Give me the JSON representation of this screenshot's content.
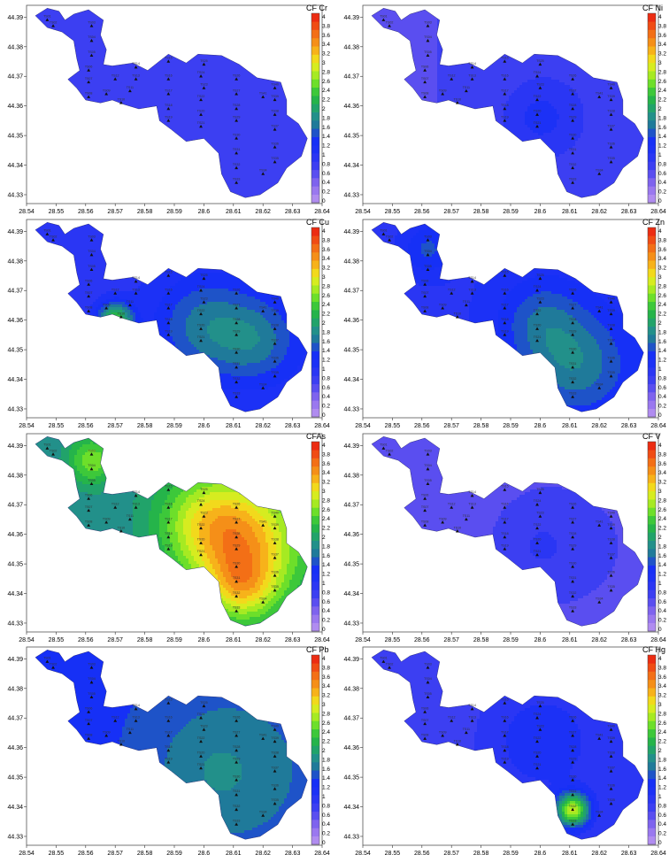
{
  "colors": {
    "bg": "#ffffff",
    "frame": "#555555",
    "colorbar": [
      "#b08cf0",
      "#9a78ef",
      "#7e63ee",
      "#5a4ef0",
      "#3c3ff2",
      "#2a36f4",
      "#1c31f6",
      "#1630f6",
      "#1e53c8",
      "#1f7a9a",
      "#22908a",
      "#21a36a",
      "#25b44a",
      "#3dc83a",
      "#6ddf2a",
      "#a6ea22",
      "#d6ec20",
      "#f2d91c",
      "#f7b21a",
      "#f58f18",
      "#f36f16",
      "#f04c14",
      "#ec2c12"
    ]
  },
  "map": {
    "x_ticks": [
      "28.54",
      "28.55",
      "28.56",
      "28.57",
      "28.58",
      "28.59",
      "28.6",
      "28.61",
      "28.62",
      "28.63",
      "28.64"
    ],
    "y_ticks": [
      "44.39",
      "44.38",
      "44.37",
      "44.36",
      "44.35",
      "44.34",
      "44.33"
    ],
    "colorbar_ticks": [
      "4",
      "3.8",
      "3.6",
      "3.4",
      "3.2",
      "3",
      "2.8",
      "2.6",
      "2.4",
      "2.2",
      "2",
      "1.8",
      "1.6",
      "1.4",
      "1.2",
      "1",
      "0.8",
      "0.6",
      "0.4",
      "0.2",
      "0"
    ],
    "stations": [
      {
        "id": "TS01",
        "x": 28.547,
        "y": 44.389
      },
      {
        "id": "TS02",
        "x": 28.549,
        "y": 44.387
      },
      {
        "id": "TS03",
        "x": 28.562,
        "y": 44.387
      },
      {
        "id": "TS04",
        "x": 28.562,
        "y": 44.382
      },
      {
        "id": "TS05",
        "x": 28.562,
        "y": 44.377
      },
      {
        "id": "TS06",
        "x": 28.561,
        "y": 44.372
      },
      {
        "id": "TS07",
        "x": 28.561,
        "y": 44.368
      },
      {
        "id": "TS08",
        "x": 28.561,
        "y": 44.363
      },
      {
        "id": "TS09",
        "x": 28.567,
        "y": 44.364
      },
      {
        "id": "TS10",
        "x": 28.572,
        "y": 44.361
      },
      {
        "id": "TS11",
        "x": 28.575,
        "y": 44.365
      },
      {
        "id": "TS12",
        "x": 28.57,
        "y": 44.369
      },
      {
        "id": "TS13",
        "x": 28.577,
        "y": 44.369
      },
      {
        "id": "TS14",
        "x": 28.577,
        "y": 44.373
      },
      {
        "id": "TS15",
        "x": 28.588,
        "y": 44.375
      },
      {
        "id": "TS16",
        "x": 28.588,
        "y": 44.369
      },
      {
        "id": "TS17",
        "x": 28.588,
        "y": 44.364
      },
      {
        "id": "TS18",
        "x": 28.588,
        "y": 44.359
      },
      {
        "id": "TS19",
        "x": 28.588,
        "y": 44.355
      },
      {
        "id": "TS20",
        "x": 28.599,
        "y": 44.357
      },
      {
        "id": "TS21",
        "x": 28.599,
        "y": 44.353
      },
      {
        "id": "TS22",
        "x": 28.599,
        "y": 44.362
      },
      {
        "id": "TS23",
        "x": 28.6,
        "y": 44.366
      },
      {
        "id": "TS24",
        "x": 28.599,
        "y": 44.37
      },
      {
        "id": "TS25",
        "x": 28.6,
        "y": 44.374
      },
      {
        "id": "TS26",
        "x": 28.611,
        "y": 44.369
      },
      {
        "id": "TS27",
        "x": 28.611,
        "y": 44.364
      },
      {
        "id": "TS28",
        "x": 28.611,
        "y": 44.359
      },
      {
        "id": "TS29",
        "x": 28.611,
        "y": 44.355
      },
      {
        "id": "TS30",
        "x": 28.611,
        "y": 44.349
      },
      {
        "id": "TS31",
        "x": 28.611,
        "y": 44.344
      },
      {
        "id": "TS32",
        "x": 28.611,
        "y": 44.339
      },
      {
        "id": "TS33",
        "x": 28.611,
        "y": 44.334
      },
      {
        "id": "TS34",
        "x": 28.62,
        "y": 44.337
      },
      {
        "id": "TS35",
        "x": 28.624,
        "y": 44.341
      },
      {
        "id": "TS36",
        "x": 28.624,
        "y": 44.346
      },
      {
        "id": "TS37",
        "x": 28.624,
        "y": 44.352
      },
      {
        "id": "TS38",
        "x": 28.624,
        "y": 44.357
      },
      {
        "id": "TS39",
        "x": 28.624,
        "y": 44.362
      },
      {
        "id": "TS40",
        "x": 28.624,
        "y": 44.366
      },
      {
        "id": "TS41",
        "x": 28.62,
        "y": 44.363
      }
    ]
  },
  "panels": [
    {
      "id": "cr",
      "title": "CF Cr",
      "base": 0.9,
      "hot": []
    },
    {
      "id": "ni",
      "title": "CF Ni",
      "base": 0.85,
      "hot": [
        {
          "x": 28.6,
          "y": 44.356,
          "v": 0.4,
          "s": 0.009
        }
      ]
    },
    {
      "id": "cu",
      "title": "CF Cu",
      "base": 1.15,
      "hot": [
        {
          "x": 28.6,
          "y": 44.358,
          "v": 0.7,
          "s": 0.012
        },
        {
          "x": 28.618,
          "y": 44.353,
          "v": 0.6,
          "s": 0.01
        },
        {
          "x": 28.57,
          "y": 44.36,
          "v": 1.6,
          "s": 0.004
        }
      ]
    },
    {
      "id": "zn",
      "title": "CF Zn",
      "base": 1.2,
      "hot": [
        {
          "x": 28.612,
          "y": 44.345,
          "v": 0.7,
          "s": 0.012
        },
        {
          "x": 28.6,
          "y": 44.36,
          "v": 0.5,
          "s": 0.01
        },
        {
          "x": 28.562,
          "y": 44.384,
          "v": 0.5,
          "s": 0.006
        }
      ]
    },
    {
      "id": "as",
      "title": "CFAs",
      "base": 2.1,
      "hot": [
        {
          "x": 28.614,
          "y": 44.357,
          "v": 1.4,
          "s": 0.014
        },
        {
          "x": 28.6,
          "y": 44.365,
          "v": 0.8,
          "s": 0.012
        },
        {
          "x": 28.562,
          "y": 44.385,
          "v": 0.9,
          "s": 0.006
        },
        {
          "x": 28.613,
          "y": 44.342,
          "v": 0.9,
          "s": 0.008
        }
      ]
    },
    {
      "id": "v",
      "title": "CF V",
      "base": 0.7,
      "hot": [
        {
          "x": 28.6,
          "y": 44.356,
          "v": 0.3,
          "s": 0.012
        }
      ]
    },
    {
      "id": "pb",
      "title": "CF Pb",
      "base": 1.6,
      "hot": [
        {
          "x": 28.605,
          "y": 44.352,
          "v": 0.4,
          "s": 0.016
        }
      ]
    },
    {
      "id": "hg",
      "title": "CF Hg",
      "base": 0.95,
      "hot": [
        {
          "x": 28.611,
          "y": 44.339,
          "v": 2.2,
          "s": 0.004
        },
        {
          "x": 28.6,
          "y": 44.362,
          "v": 0.4,
          "s": 0.012
        }
      ]
    }
  ]
}
